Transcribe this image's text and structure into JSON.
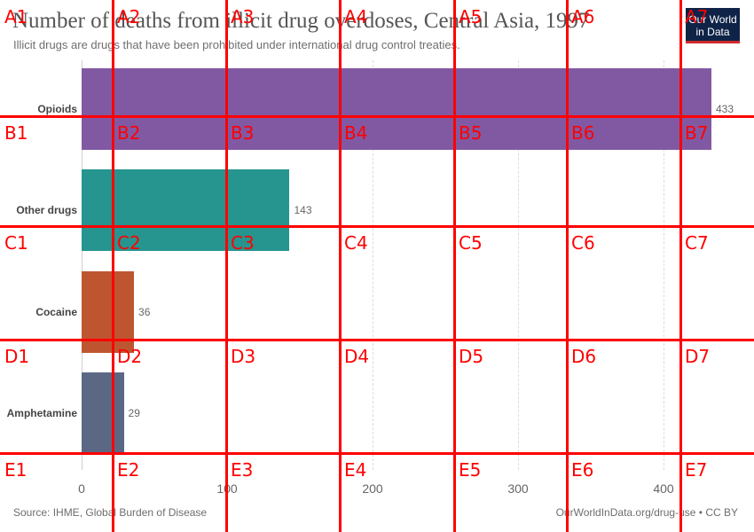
{
  "chart_data": {
    "type": "bar",
    "orientation": "horizontal",
    "title": "Number of deaths from illicit drug overdoses, Central Asia, 1997",
    "subtitle": "Illicit drugs are drugs that have been prohibited under international drug control treaties.",
    "categories": [
      "Opioids",
      "Other drugs",
      "Cocaine",
      "Amphetamine"
    ],
    "values": [
      433,
      143,
      36,
      29
    ],
    "value_labels": [
      "433",
      "143",
      "36",
      "29"
    ],
    "colors": [
      "#8159a3",
      "#26958f",
      "#bd5630",
      "#5b6884"
    ],
    "xlim": [
      0,
      433
    ],
    "xticks": [
      0,
      100,
      200,
      300,
      400
    ],
    "xtick_labels": [
      "0",
      "100",
      "200",
      "300",
      "400"
    ],
    "grid": true
  },
  "footer": {
    "source": "Source: IHME, Global Burden of Disease",
    "credit": "OurWorldInData.org/drug-use • CC BY"
  },
  "logo": {
    "line1": "Our World",
    "line2": "in Data"
  },
  "grid_overlay": {
    "rows": [
      "A",
      "B",
      "C",
      "D",
      "E"
    ],
    "cols": [
      "1",
      "2",
      "3",
      "4",
      "5",
      "6",
      "7"
    ],
    "color": "#ff0000"
  }
}
